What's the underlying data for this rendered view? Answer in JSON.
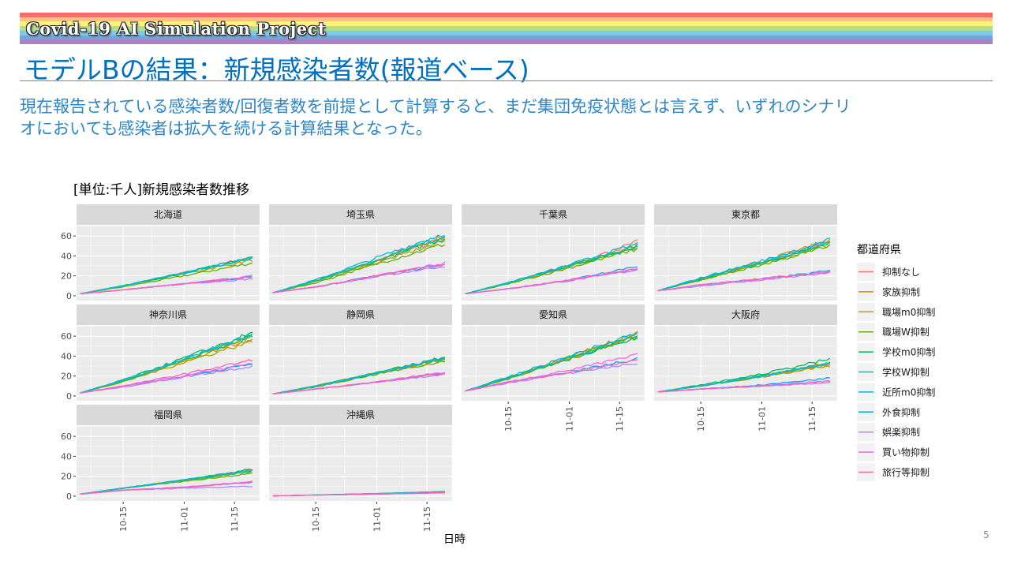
{
  "banner": {
    "text": "Covid-19 AI Simulation Project",
    "stripe_colors": [
      "#FF6B6B",
      "#FFC183",
      "#FFF27A",
      "#B5DE8C",
      "#7EC8EA",
      "#6FA8DC",
      "#A783C4"
    ]
  },
  "slide": {
    "title": "モデルBの結果：新規感染者数(報道ベース)",
    "body_line1": "現在報告されている感染者数/回復者数を前提として計算すると、まだ集団免疫状態とは言えず、いずれのシナリ",
    "body_line2": "オにおいても感染者は拡大を続ける計算結果となった。",
    "page_number": "5",
    "title_color": "#0070C0"
  },
  "chart_data": {
    "type": "line",
    "title": "[単位:千人]新規感染者数推移",
    "xlabel": "日時",
    "ylabel": "",
    "x": [
      "10-03",
      "10-15",
      "11-01",
      "11-20"
    ],
    "xlim": [
      "10-02",
      "11-22"
    ],
    "ylim": [
      0,
      70
    ],
    "x_ticks": [
      "10-15",
      "11-01",
      "11-15"
    ],
    "y_ticks": [
      0,
      20,
      40,
      60
    ],
    "grid": true,
    "legend_title": "都道府県",
    "legend_position": "right",
    "series_names": [
      "抑制なし",
      "家族抑制",
      "職場m0抑制",
      "職場W抑制",
      "学校m0抑制",
      "学校W抑制",
      "近所m0抑制",
      "外食抑制",
      "娯楽抑制",
      "買い物抑制",
      "旅行等抑制"
    ],
    "series_colors": [
      "#F8766D",
      "#DB8E00",
      "#AEA200",
      "#64B200",
      "#00BD5C",
      "#00C1A7",
      "#00BADE",
      "#00A6FF",
      "#B385FF",
      "#EF67EB",
      "#FF63B6"
    ],
    "panels": [
      {
        "name": "北海道",
        "values": [
          [
            2,
            10,
            23,
            39
          ],
          [
            2,
            10,
            23,
            38
          ],
          [
            2,
            10,
            22,
            36
          ],
          [
            2,
            9,
            20,
            33
          ],
          [
            2,
            10,
            23,
            38
          ],
          [
            2,
            10,
            23,
            38
          ],
          [
            2,
            10,
            23,
            38
          ],
          [
            2,
            6,
            12,
            19
          ],
          [
            2,
            6,
            12,
            17
          ],
          [
            2,
            6,
            12,
            20
          ],
          [
            2,
            6,
            12,
            19
          ]
        ]
      },
      {
        "name": "埼玉県",
        "values": [
          [
            3,
            15,
            35,
            58
          ],
          [
            3,
            15,
            35,
            60
          ],
          [
            3,
            14,
            33,
            55
          ],
          [
            3,
            13,
            32,
            52
          ],
          [
            3,
            15,
            35,
            58
          ],
          [
            3,
            15,
            36,
            60
          ],
          [
            3,
            16,
            38,
            63
          ],
          [
            3,
            9,
            20,
            32
          ],
          [
            3,
            9,
            19,
            30
          ],
          [
            3,
            9,
            20,
            33
          ],
          [
            3,
            9,
            20,
            32
          ]
        ]
      },
      {
        "name": "千葉県",
        "values": [
          [
            2,
            13,
            30,
            54
          ],
          [
            2,
            13,
            30,
            51
          ],
          [
            2,
            12,
            29,
            48
          ],
          [
            2,
            12,
            28,
            47
          ],
          [
            2,
            13,
            30,
            50
          ],
          [
            2,
            13,
            30,
            50
          ],
          [
            2,
            13,
            31,
            52
          ],
          [
            2,
            7,
            16,
            30
          ],
          [
            2,
            7,
            15,
            26
          ],
          [
            2,
            7,
            16,
            27
          ],
          [
            2,
            7,
            16,
            27
          ]
        ]
      },
      {
        "name": "東京都",
        "values": [
          [
            5,
            17,
            33,
            54
          ],
          [
            5,
            17,
            34,
            56
          ],
          [
            5,
            16,
            32,
            51
          ],
          [
            5,
            16,
            31,
            50
          ],
          [
            5,
            17,
            33,
            53
          ],
          [
            5,
            17,
            33,
            53
          ],
          [
            5,
            18,
            35,
            56
          ],
          [
            5,
            11,
            17,
            25
          ],
          [
            5,
            10,
            16,
            23
          ],
          [
            5,
            11,
            17,
            24
          ],
          [
            5,
            11,
            17,
            24
          ]
        ]
      },
      {
        "name": "神奈川県",
        "values": [
          [
            3,
            15,
            36,
            60
          ],
          [
            3,
            15,
            35,
            58
          ],
          [
            3,
            14,
            34,
            55
          ],
          [
            3,
            15,
            36,
            60
          ],
          [
            3,
            16,
            38,
            63
          ],
          [
            3,
            15,
            36,
            61
          ],
          [
            3,
            16,
            37,
            62
          ],
          [
            3,
            10,
            20,
            32
          ],
          [
            3,
            9,
            19,
            30
          ],
          [
            3,
            10,
            20,
            33
          ],
          [
            3,
            10,
            22,
            36
          ]
        ]
      },
      {
        "name": "静岡県",
        "values": [
          [
            2,
            10,
            23,
            38
          ],
          [
            2,
            10,
            23,
            38
          ],
          [
            2,
            10,
            22,
            36
          ],
          [
            2,
            9,
            22,
            35
          ],
          [
            2,
            10,
            23,
            39
          ],
          [
            2,
            10,
            23,
            38
          ],
          [
            2,
            10,
            23,
            38
          ],
          [
            2,
            7,
            14,
            23
          ],
          [
            2,
            7,
            14,
            22
          ],
          [
            2,
            7,
            14,
            24
          ],
          [
            2,
            7,
            14,
            23
          ]
        ]
      },
      {
        "name": "愛知県",
        "values": [
          [
            5,
            18,
            38,
            59
          ],
          [
            5,
            18,
            38,
            62
          ],
          [
            5,
            18,
            39,
            63
          ],
          [
            5,
            17,
            37,
            60
          ],
          [
            5,
            18,
            37,
            60
          ],
          [
            5,
            18,
            38,
            61
          ],
          [
            5,
            19,
            40,
            63
          ],
          [
            5,
            14,
            24,
            37
          ],
          [
            5,
            13,
            23,
            33
          ],
          [
            5,
            14,
            26,
            41
          ],
          [
            5,
            14,
            24,
            36
          ]
        ]
      },
      {
        "name": "大阪府",
        "values": [
          [
            4,
            10,
            20,
            33
          ],
          [
            4,
            10,
            20,
            31
          ],
          [
            4,
            10,
            19,
            30
          ],
          [
            4,
            10,
            20,
            34
          ],
          [
            4,
            11,
            22,
            37
          ],
          [
            4,
            10,
            20,
            33
          ],
          [
            4,
            10,
            20,
            33
          ],
          [
            4,
            7,
            11,
            18
          ],
          [
            4,
            7,
            10,
            13
          ],
          [
            4,
            7,
            10,
            15
          ],
          [
            4,
            7,
            10,
            15
          ]
        ]
      },
      {
        "name": "福岡県",
        "values": [
          [
            2,
            8,
            16,
            27
          ],
          [
            2,
            8,
            16,
            26
          ],
          [
            2,
            8,
            15,
            25
          ],
          [
            2,
            8,
            15,
            23
          ],
          [
            2,
            8,
            16,
            27
          ],
          [
            2,
            8,
            16,
            26
          ],
          [
            2,
            8,
            16,
            26
          ],
          [
            2,
            6,
            9,
            14
          ],
          [
            2,
            6,
            8,
            10
          ],
          [
            2,
            6,
            9,
            15
          ],
          [
            2,
            6,
            9,
            14
          ]
        ]
      },
      {
        "name": "沖縄県",
        "values": [
          [
            0.3,
            1.2,
            2.6,
            4.5
          ],
          [
            0.3,
            1.2,
            2.6,
            4.5
          ],
          [
            0.3,
            1.2,
            2.5,
            4.3
          ],
          [
            0.3,
            1.1,
            2.4,
            4.2
          ],
          [
            0.3,
            1.2,
            2.6,
            4.6
          ],
          [
            0.3,
            1.2,
            2.6,
            4.5
          ],
          [
            0.3,
            1.2,
            2.6,
            4.5
          ],
          [
            0.3,
            1.0,
            2.1,
            3.5
          ],
          [
            0.3,
            1.0,
            2.0,
            3.3
          ],
          [
            0.3,
            1.0,
            2.1,
            3.6
          ],
          [
            0.3,
            1.0,
            2.1,
            3.5
          ]
        ]
      }
    ]
  }
}
